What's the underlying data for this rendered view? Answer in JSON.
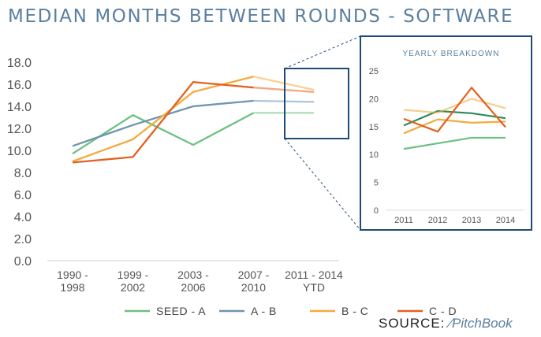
{
  "title": "MEDIAN MONTHS BETWEEN ROUNDS - SOFTWARE",
  "source": {
    "label": "SOURCE:",
    "logo_text": "PitchBook",
    "logo_icon": "pitchbook-slash-icon"
  },
  "colors": {
    "seed_a": "#6cc080",
    "a_b": "#6f95b0",
    "b_c": "#f5aa3c",
    "c_d": "#e3611f",
    "box": "#1f4a78",
    "title": "#5a7fa0",
    "grid": "#cccccc"
  },
  "chart_data": [
    {
      "type": "line",
      "title": "MEDIAN MONTHS BETWEEN ROUNDS - SOFTWARE",
      "categories": [
        "1990 - 1998",
        "1999 - 2002",
        "2003 - 2006",
        "2007 - 2010",
        "2011 - 2014 YTD"
      ],
      "ylim": [
        0,
        18
      ],
      "yticks": [
        "0.0",
        "2.0",
        "4.0",
        "6.0",
        "8.0",
        "10.0",
        "12.0",
        "14.0",
        "16.0",
        "18.0"
      ],
      "grid": false,
      "legend_position": "bottom",
      "series": [
        {
          "name": "SEED - A",
          "color": "#6cc080",
          "values": [
            9.7,
            13.2,
            10.5,
            13.4,
            13.4
          ]
        },
        {
          "name": "A - B",
          "color": "#6f95b0",
          "values": [
            10.4,
            12.3,
            14.0,
            14.5,
            14.4
          ]
        },
        {
          "name": "B - C",
          "color": "#f5aa3c",
          "values": [
            9.0,
            11.0,
            15.3,
            16.7,
            15.5
          ]
        },
        {
          "name": "C - D",
          "color": "#e3611f",
          "values": [
            8.9,
            9.4,
            16.2,
            15.7,
            15.3
          ]
        }
      ]
    },
    {
      "type": "line",
      "title": "YEARLY BREAKDOWN",
      "categories": [
        "2011",
        "2012",
        "2013",
        "2014"
      ],
      "ylim": [
        0,
        25
      ],
      "yticks": [
        "0",
        "5",
        "10",
        "15",
        "20",
        "25"
      ],
      "grid": false,
      "series": [
        {
          "color": "#6cc080",
          "values": [
            11.0,
            12.0,
            13.0,
            13.0
          ]
        },
        {
          "color": "#2e8b57",
          "values": [
            15.2,
            17.8,
            17.4,
            16.5
          ]
        },
        {
          "color": "#f5aa3c",
          "values": [
            13.8,
            16.3,
            15.7,
            15.9
          ]
        },
        {
          "color": "#f5aa3c",
          "values": [
            18.0,
            17.5,
            20.0,
            18.3
          ]
        },
        {
          "color": "#e3611f",
          "values": [
            16.4,
            14.1,
            22.0,
            14.9
          ]
        }
      ]
    }
  ]
}
